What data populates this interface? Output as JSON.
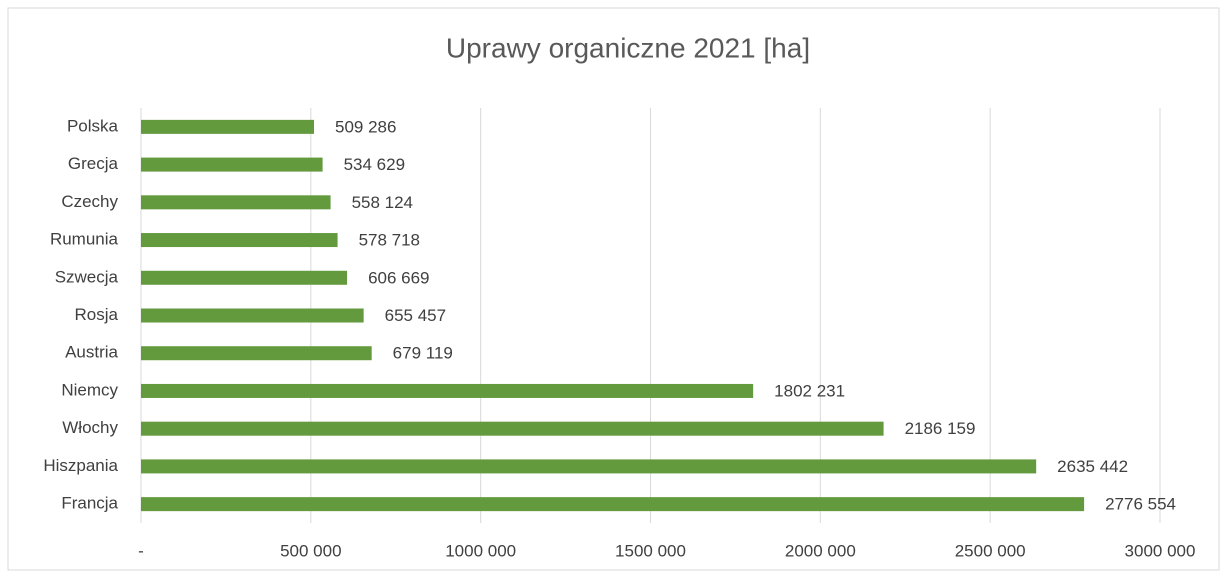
{
  "chart_data": {
    "type": "bar",
    "orientation": "horizontal",
    "title": "Uprawy organiczne 2021 [ha]",
    "categories": [
      "Polska",
      "Grecja",
      "Czechy",
      "Rumunia",
      "Szwecja",
      "Rosja",
      "Austria",
      "Niemcy",
      "Włochy",
      "Hiszpania",
      "Francja"
    ],
    "values": [
      509286,
      534629,
      558124,
      578718,
      606669,
      655457,
      679119,
      1802231,
      2186159,
      2635442,
      2776554
    ],
    "value_labels": [
      "509 286",
      "534 629",
      "558 124",
      "578 718",
      "606 669",
      "655 457",
      "679 119",
      "1802 231",
      "2186 159",
      "2635 442",
      "2776 554"
    ],
    "color": "#629a3d",
    "xlim": [
      0,
      3000000
    ],
    "xticks": [
      {
        "value": 0,
        "label": "-"
      },
      {
        "value": 500000,
        "label": "500 000"
      },
      {
        "value": 1000000,
        "label": "1000 000"
      },
      {
        "value": 1500000,
        "label": "1500 000"
      },
      {
        "value": 2000000,
        "label": "2000 000"
      },
      {
        "value": 2500000,
        "label": "2500 000"
      },
      {
        "value": 3000000,
        "label": "3000 000"
      }
    ],
    "grid": true
  }
}
